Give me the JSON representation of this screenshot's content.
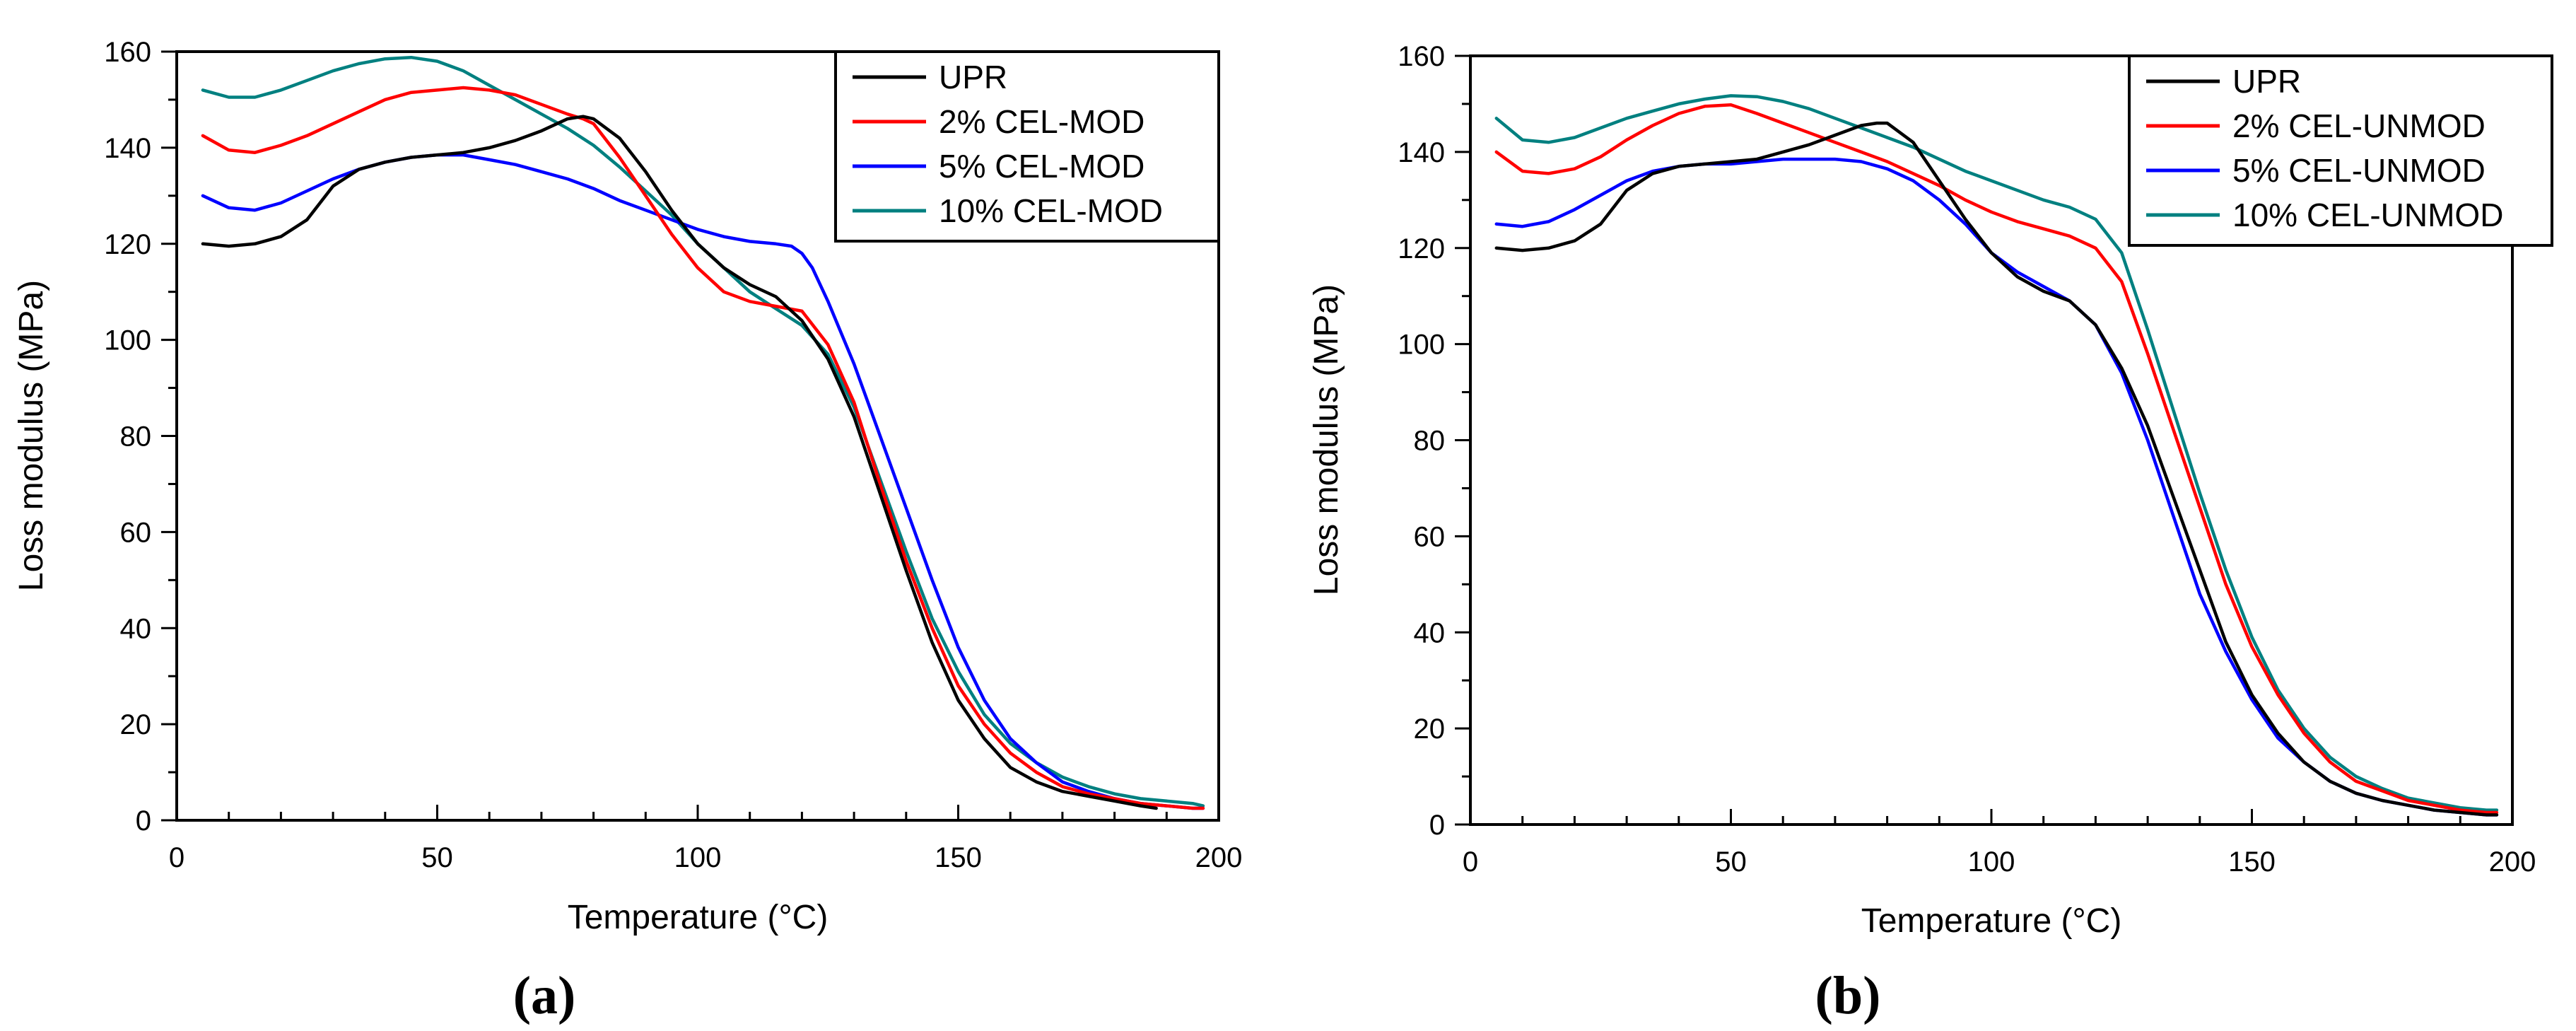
{
  "chart_data": [
    {
      "type": "line",
      "panel_label": "(a)",
      "xlabel": "Temperature (°C)",
      "ylabel": "Loss modulus (MPa)",
      "xlim": [
        0,
        200
      ],
      "ylim": [
        0,
        160
      ],
      "xticks": [
        0,
        50,
        100,
        150,
        200
      ],
      "yticks": [
        0,
        20,
        40,
        60,
        80,
        100,
        120,
        140,
        160
      ],
      "xtick_labels": [
        "0",
        "50",
        "100",
        "150",
        "200"
      ],
      "ytick_labels": [
        "0",
        "20",
        "40",
        "60",
        "80",
        "100",
        "120",
        "140",
        "160"
      ],
      "legend_position": "top-right",
      "series": [
        {
          "name": "UPR",
          "color": "#000000",
          "x": [
            5,
            10,
            15,
            20,
            25,
            30,
            35,
            40,
            45,
            50,
            55,
            60,
            65,
            70,
            75,
            78,
            80,
            85,
            90,
            95,
            100,
            105,
            110,
            115,
            120,
            125,
            130,
            135,
            140,
            145,
            150,
            155,
            160,
            165,
            170,
            175,
            180,
            185,
            188
          ],
          "y": [
            120,
            119.5,
            120,
            121.5,
            125,
            132,
            135.5,
            137,
            138,
            138.5,
            139,
            140,
            141.5,
            143.5,
            146,
            146.5,
            146,
            142,
            135,
            127,
            120,
            115,
            111.5,
            109,
            104,
            96,
            84,
            68,
            52,
            37,
            25,
            17,
            11,
            8,
            6,
            5,
            4,
            3,
            2.5
          ]
        },
        {
          "name": "2% CEL-MOD",
          "color": "#ff0000",
          "x": [
            5,
            10,
            15,
            20,
            25,
            30,
            35,
            40,
            45,
            50,
            55,
            60,
            65,
            70,
            75,
            78,
            80,
            85,
            90,
            95,
            100,
            105,
            110,
            115,
            120,
            125,
            130,
            135,
            140,
            145,
            150,
            155,
            160,
            165,
            170,
            175,
            180,
            185,
            190,
            195,
            197
          ],
          "y": [
            142.5,
            139.5,
            139,
            140.5,
            142.5,
            145,
            147.5,
            150,
            151.5,
            152,
            152.5,
            152,
            151,
            149,
            147,
            146,
            145,
            138,
            130,
            122,
            115,
            110,
            108,
            107,
            106,
            99,
            87,
            70,
            54,
            40,
            28,
            20,
            14,
            10,
            7,
            5.5,
            4.5,
            3.5,
            3,
            2.5,
            2.5
          ]
        },
        {
          "name": "5% CEL-MOD",
          "color": "#0000ff",
          "x": [
            5,
            10,
            15,
            20,
            25,
            30,
            35,
            40,
            45,
            50,
            55,
            60,
            65,
            70,
            75,
            80,
            85,
            90,
            95,
            100,
            105,
            110,
            115,
            118,
            120,
            122,
            125,
            130,
            135,
            140,
            145,
            150,
            155,
            160,
            165,
            170,
            175,
            180,
            185,
            190,
            195,
            197
          ],
          "y": [
            130,
            127.5,
            127,
            128.5,
            131,
            133.5,
            135.5,
            137,
            138,
            138.5,
            138.5,
            137.5,
            136.5,
            135,
            133.5,
            131.5,
            129,
            127,
            125,
            123,
            121.5,
            120.5,
            120,
            119.5,
            118,
            115,
            108,
            95,
            80,
            65,
            50,
            36,
            25,
            17,
            12,
            8,
            6,
            4.5,
            3.5,
            3,
            2.5,
            2.5
          ]
        },
        {
          "name": "10% CEL-MOD",
          "color": "#008080",
          "x": [
            5,
            10,
            15,
            20,
            25,
            30,
            35,
            40,
            45,
            50,
            55,
            60,
            65,
            70,
            75,
            80,
            85,
            90,
            95,
            100,
            105,
            110,
            115,
            120,
            125,
            130,
            135,
            140,
            145,
            150,
            155,
            160,
            165,
            170,
            175,
            180,
            185,
            190,
            195,
            197
          ],
          "y": [
            152,
            150.5,
            150.5,
            152,
            154,
            156,
            157.5,
            158.5,
            158.8,
            158,
            156,
            153,
            150,
            147,
            144,
            140.5,
            136,
            131,
            126,
            120,
            115,
            110,
            106.5,
            103,
            97,
            86,
            71,
            56,
            42,
            31,
            22,
            16,
            12,
            9,
            7,
            5.5,
            4.5,
            4,
            3.5,
            3
          ]
        }
      ]
    },
    {
      "type": "line",
      "panel_label": "(b)",
      "xlabel": "Temperature (°C)",
      "ylabel": "Loss modulus (MPa)",
      "xlim": [
        0,
        200
      ],
      "ylim": [
        0,
        160
      ],
      "xticks": [
        0,
        50,
        100,
        150,
        200
      ],
      "yticks": [
        0,
        20,
        40,
        60,
        80,
        100,
        120,
        140,
        160
      ],
      "xtick_labels": [
        "0",
        "50",
        "100",
        "150",
        "200"
      ],
      "ytick_labels": [
        "0",
        "20",
        "40",
        "60",
        "80",
        "100",
        "120",
        "140",
        "160"
      ],
      "legend_position": "top-right",
      "series": [
        {
          "name": "UPR",
          "color": "#000000",
          "x": [
            5,
            10,
            15,
            20,
            25,
            30,
            35,
            40,
            45,
            50,
            55,
            60,
            65,
            70,
            75,
            78,
            80,
            85,
            90,
            95,
            100,
            105,
            110,
            115,
            120,
            125,
            130,
            135,
            140,
            145,
            150,
            155,
            160,
            165,
            170,
            175,
            180,
            185,
            190,
            195,
            197
          ],
          "y": [
            120,
            119.5,
            120,
            121.5,
            125,
            132,
            135.5,
            137,
            137.5,
            138,
            138.5,
            140,
            141.5,
            143.5,
            145.5,
            146,
            146,
            142,
            134,
            126,
            119,
            114,
            111,
            109,
            104,
            95,
            83,
            68,
            53,
            38,
            27,
            19,
            13,
            9,
            6.5,
            5,
            4,
            3,
            2.5,
            2,
            2
          ]
        },
        {
          "name": "2% CEL-UNMOD",
          "color": "#ff0000",
          "x": [
            5,
            10,
            15,
            20,
            25,
            30,
            35,
            40,
            45,
            50,
            55,
            60,
            65,
            70,
            75,
            80,
            85,
            90,
            95,
            100,
            105,
            110,
            115,
            120,
            125,
            130,
            135,
            140,
            145,
            150,
            155,
            160,
            165,
            170,
            175,
            180,
            185,
            190,
            195,
            197
          ],
          "y": [
            140,
            136,
            135.5,
            136.5,
            139,
            142.5,
            145.5,
            148,
            149.5,
            149.8,
            148,
            146,
            144,
            142,
            140,
            138,
            135.5,
            133,
            130,
            127.5,
            125.5,
            124,
            122.5,
            120,
            113,
            98,
            82,
            66,
            50,
            37,
            27,
            19,
            13,
            9,
            7,
            5,
            4,
            3,
            2.5,
            2.5
          ]
        },
        {
          "name": "5% CEL-UNMOD",
          "color": "#0000ff",
          "x": [
            5,
            10,
            15,
            20,
            25,
            30,
            35,
            40,
            45,
            50,
            55,
            60,
            65,
            70,
            75,
            80,
            85,
            90,
            95,
            100,
            105,
            110,
            115,
            120,
            125,
            130,
            135,
            140,
            145,
            150,
            155,
            160,
            165,
            170,
            175,
            180,
            185,
            190,
            195,
            197
          ],
          "y": [
            125,
            124.5,
            125.5,
            128,
            131,
            134,
            136,
            137,
            137.5,
            137.5,
            138,
            138.5,
            138.5,
            138.5,
            138,
            136.5,
            134,
            130,
            125,
            119,
            115,
            112,
            109,
            104,
            94,
            80,
            64,
            48,
            36,
            26,
            18,
            13,
            9,
            6.5,
            5,
            4,
            3,
            2.5,
            2,
            2
          ]
        },
        {
          "name": "10% CEL-UNMOD",
          "color": "#008080",
          "x": [
            5,
            10,
            15,
            20,
            25,
            30,
            35,
            40,
            45,
            50,
            55,
            60,
            65,
            70,
            75,
            80,
            85,
            90,
            95,
            100,
            105,
            110,
            115,
            120,
            125,
            130,
            135,
            140,
            145,
            150,
            155,
            160,
            165,
            170,
            175,
            180,
            185,
            190,
            195,
            197
          ],
          "y": [
            147,
            142.5,
            142,
            143,
            145,
            147,
            148.5,
            150,
            151,
            151.7,
            151.5,
            150.5,
            149,
            147,
            145,
            143,
            141,
            138.5,
            136,
            134,
            132,
            130,
            128.5,
            126,
            119,
            103,
            86,
            69,
            53,
            39,
            28,
            20,
            14,
            10,
            7.5,
            5.5,
            4.5,
            3.5,
            3,
            3
          ]
        }
      ]
    }
  ]
}
